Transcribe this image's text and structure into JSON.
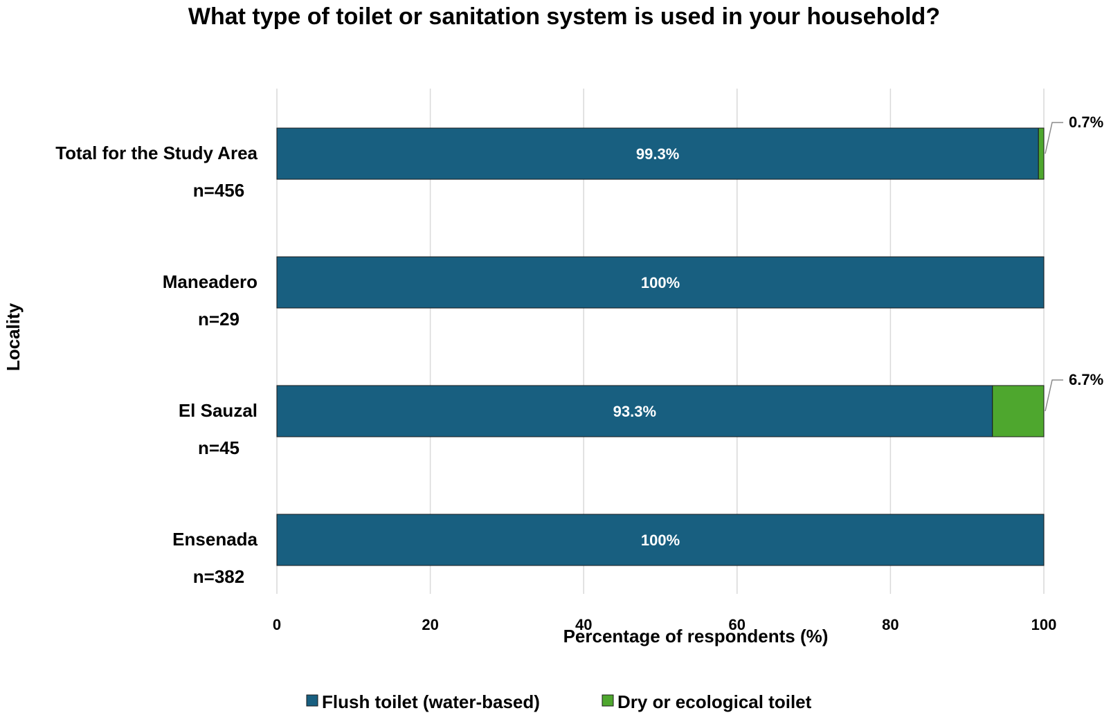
{
  "chart_data": {
    "type": "bar",
    "orientation": "horizontal",
    "stacked": true,
    "title": "What type of toilet or sanitation system is used in your household?",
    "xlabel": "Percentage of respondents (%)",
    "ylabel": "Locality",
    "xlim": [
      0,
      100
    ],
    "xticks": [
      0,
      20,
      40,
      60,
      80,
      100
    ],
    "grid": "vertical",
    "legend_position": "bottom",
    "categories": [
      {
        "name": "Total for the Study Area",
        "n": "n=456"
      },
      {
        "name": "Maneadero",
        "n": "n=29"
      },
      {
        "name": "El Sauzal",
        "n": "n=45"
      },
      {
        "name": "Ensenada",
        "n": "n=382"
      }
    ],
    "series": [
      {
        "name": "Flush toilet (water-based)",
        "color": "#185f80",
        "values": [
          99.3,
          100,
          93.3,
          100
        ],
        "labels": [
          "99.3%",
          "100%",
          "93.3%",
          "100%"
        ]
      },
      {
        "name": "Dry or ecological toilet",
        "color": "#4ea72e",
        "values": [
          0.7,
          0,
          6.7,
          0
        ],
        "labels": [
          "0.7%",
          "",
          "6.7%",
          ""
        ]
      }
    ]
  }
}
